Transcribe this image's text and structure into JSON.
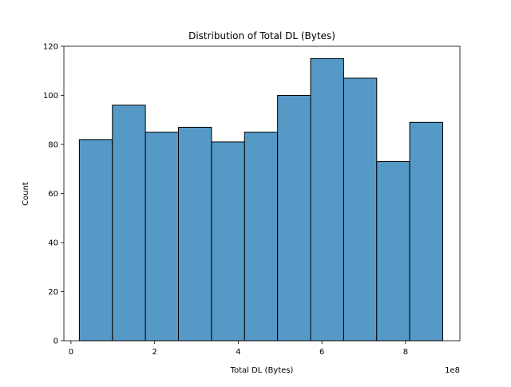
{
  "chart_data": {
    "type": "bar",
    "title": "Distribution of Total DL (Bytes)",
    "xlabel": "Total DL (Bytes)",
    "ylabel": "Count",
    "x_offset_label": "1e8",
    "xlim": [
      -0.17,
      9.3
    ],
    "ylim": [
      0,
      120
    ],
    "xticks": [
      0,
      2,
      4,
      6,
      8
    ],
    "yticks": [
      0,
      20,
      40,
      60,
      80,
      100,
      120
    ],
    "bin_edges": [
      0.2,
      0.99,
      1.78,
      2.57,
      3.36,
      4.15,
      4.94,
      5.73,
      6.52,
      7.31,
      8.1,
      8.89
    ],
    "values": [
      82,
      96,
      85,
      87,
      81,
      85,
      100,
      115,
      107,
      73,
      89
    ],
    "bar_color": "#5599c7",
    "edge_color": "#000000",
    "grid": false
  }
}
